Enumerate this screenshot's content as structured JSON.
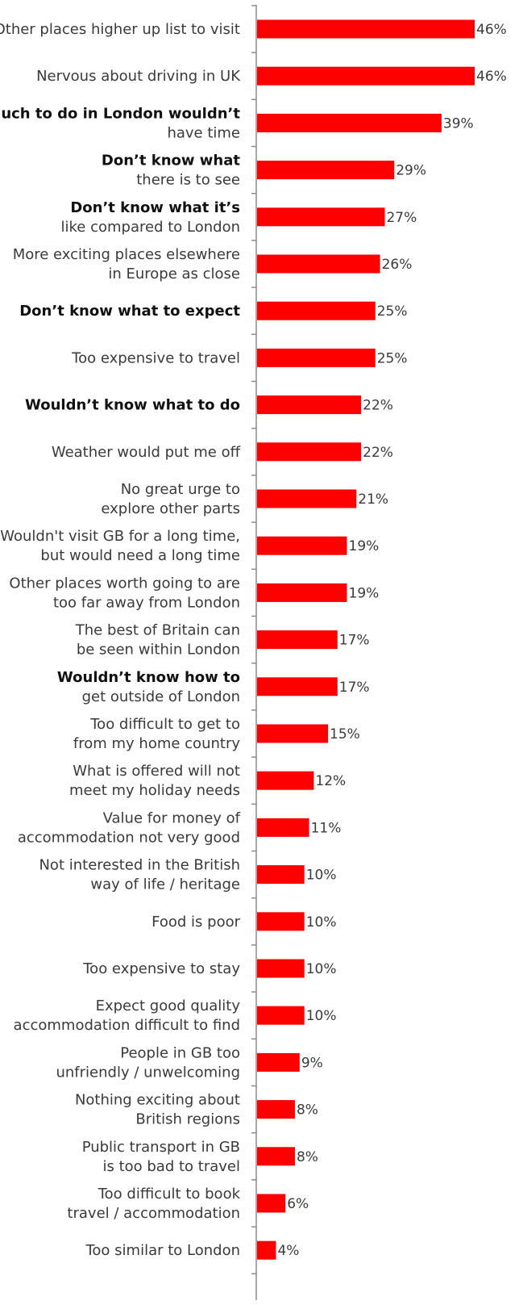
{
  "chart_data": {
    "type": "bar",
    "orientation": "horizontal",
    "categories": [
      "Other places higher up list to visit",
      "Nervous about driving in UK",
      "So much to do in London wouldn’t have time",
      "Don’t know what there is to see",
      "Don’t know what it’s like compared to London",
      "More exciting places elsewhere in Europe as close",
      "Don’t know what to expect",
      "Too expensive to travel",
      "Wouldn’t know what to do",
      "Weather would put me off",
      "No great urge to explore other parts",
      "Wouldn't visit GB for a long time, but would need a long time",
      "Other places worth going to are too far away from London",
      "The best of Britain can be seen within London",
      "Wouldn’t know how to get outside of London",
      "Too difficult to get to from my home country",
      "What is offered will not meet my holiday needs",
      "Value for money of accommodation not very good",
      "Not interested in the British way of life / heritage",
      "Food is poor",
      "Too expensive to stay",
      "Expect good quality accommodation difficult to find",
      "People in GB too unfriendly / unwelcoming",
      "Nothing exciting about British regions",
      "Public transport in GB is too bad to travel",
      "Too difficult to book travel / accommodation",
      "Too similar to London"
    ],
    "label_lines": [
      [
        "Other places higher up list to visit"
      ],
      [
        "Nervous about driving in UK"
      ],
      [
        "So much to do in London wouldn’t",
        "have time"
      ],
      [
        "Don’t know what",
        "there is to see"
      ],
      [
        "Don’t know what it’s",
        "like compared to London"
      ],
      [
        "More exciting places elsewhere",
        "in Europe as close"
      ],
      [
        "Don’t know what to expect"
      ],
      [
        "Too expensive to travel"
      ],
      [
        "Wouldn’t know what to do"
      ],
      [
        "Weather would put me off"
      ],
      [
        "No great urge to",
        "explore other parts"
      ],
      [
        "Wouldn't visit GB for a long time,",
        "but would need a long time"
      ],
      [
        "Other places worth going to are",
        "too far away from London"
      ],
      [
        "The best of Britain can",
        "be seen within London"
      ],
      [
        "Wouldn’t know how to",
        "get outside of London"
      ],
      [
        "Too difficult to get to",
        "from my home country"
      ],
      [
        "What is offered will not",
        "meet my holiday needs"
      ],
      [
        "Value for money of",
        "accommodation not very good"
      ],
      [
        "Not interested in the British",
        "way of life / heritage"
      ],
      [
        "Food is poor"
      ],
      [
        "Too expensive to stay"
      ],
      [
        "Expect good quality",
        "accommodation difficult to find"
      ],
      [
        "People in GB too",
        "unfriendly / unwelcoming"
      ],
      [
        "Nothing exciting about",
        "British regions"
      ],
      [
        "Public transport in GB",
        "is too bad to travel"
      ],
      [
        "Too difficult to book",
        "travel / accommodation"
      ],
      [
        "Too similar to London"
      ]
    ],
    "bold_first_line": [
      false,
      false,
      true,
      true,
      true,
      false,
      true,
      false,
      true,
      false,
      false,
      false,
      false,
      false,
      true,
      false,
      false,
      false,
      false,
      false,
      false,
      false,
      false,
      false,
      false,
      false,
      false
    ],
    "values": [
      46,
      46,
      39,
      29,
      27,
      26,
      25,
      25,
      22,
      22,
      21,
      19,
      19,
      17,
      17,
      15,
      12,
      11,
      10,
      10,
      10,
      10,
      9,
      8,
      8,
      6,
      4
    ],
    "value_labels": [
      "46%",
      "46%",
      "39%",
      "29%",
      "27%",
      "26%",
      "25%",
      "25%",
      "22%",
      "22%",
      "21%",
      "19%",
      "19%",
      "17%",
      "17%",
      "15%",
      "12%",
      "11%",
      "10%",
      "10%",
      "10%",
      "10%",
      "9%",
      "8%",
      "8%",
      "6%",
      "4%"
    ],
    "xlim": [
      0,
      46
    ],
    "bar_color": "#ff0000",
    "axis_color": "#8c8c8c",
    "grid": false,
    "legend": false
  }
}
